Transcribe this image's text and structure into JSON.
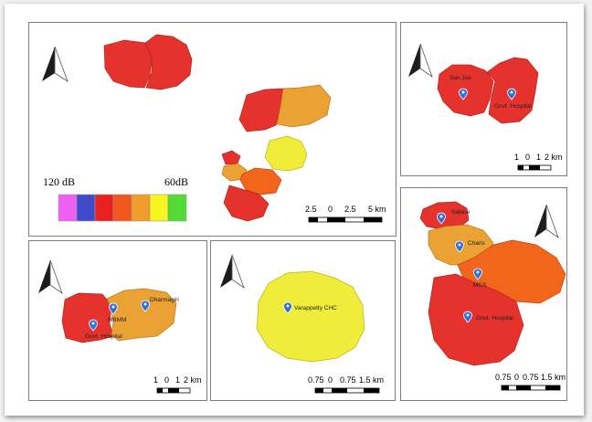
{
  "legend": {
    "high_label": "120 dB",
    "low_label": "60dB",
    "colors": [
      "#ee5ff2",
      "#3f4bc9",
      "#e8211f",
      "#f2561d",
      "#f29c2b",
      "#f7f51f",
      "#52da35"
    ]
  },
  "panels": {
    "overview": {
      "scale_labels": [
        "2.5",
        "0",
        "2.5",
        "5 km"
      ]
    },
    "top_right": {
      "markers": [
        "San Joe",
        "Govt. Hospital"
      ],
      "scale_labels": [
        "1",
        "0",
        "1",
        "2 km"
      ]
    },
    "bottom_left": {
      "markers": [
        "MBMM",
        "Dharmagiri",
        "Govt. Hospital"
      ],
      "scale_labels": [
        "1",
        "0",
        "1",
        "2 km"
      ]
    },
    "bottom_middle": {
      "markers": [
        "Varappetty CHC"
      ],
      "scale_labels": [
        "0.75",
        "0",
        "0.75",
        "1.5 km"
      ]
    },
    "bottom_right": {
      "markers": [
        "Sabine",
        "Charis",
        "MCS",
        "Govt. Hospital"
      ],
      "scale_labels": [
        "0.75",
        "0",
        "0.75",
        "1.5 km"
      ]
    }
  },
  "icons": [
    "north-arrow-icon",
    "map-pin-icon"
  ],
  "colors": {
    "red": "#e5322d",
    "orange_red": "#f2661c",
    "orange": "#eba235",
    "yellow": "#f0ec3a"
  }
}
